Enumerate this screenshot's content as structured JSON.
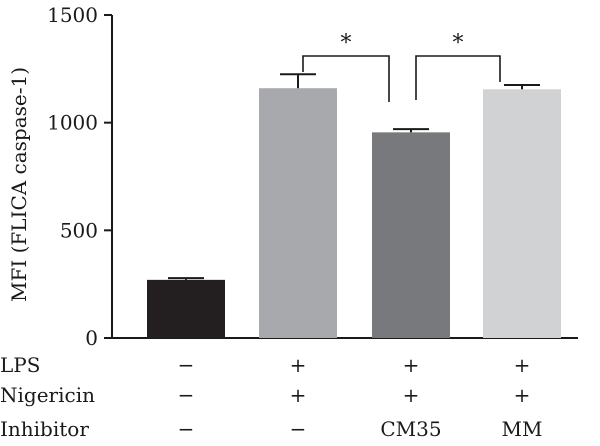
{
  "chart_data": {
    "type": "bar",
    "ylabel": "MFI (FLICA caspase-1)",
    "ylim": [
      0,
      1500
    ],
    "yticks": [
      0,
      500,
      1000,
      1500
    ],
    "bars": [
      {
        "value": 270,
        "error": 8,
        "color": "#231f20"
      },
      {
        "value": 1160,
        "error": 65,
        "color": "#a8a9ad"
      },
      {
        "value": 955,
        "error": 15,
        "color": "#78797c"
      },
      {
        "value": 1155,
        "error": 20,
        "color": "#d1d2d4"
      }
    ],
    "conditions": [
      {
        "label": "LPS",
        "values": [
          "−",
          "+",
          "+",
          "+"
        ]
      },
      {
        "label": "Nigericin",
        "values": [
          "−",
          "+",
          "+",
          "+"
        ]
      },
      {
        "label": "Inhibitor",
        "values": [
          "−",
          "−",
          "CM35",
          "MM"
        ]
      }
    ],
    "significance": [
      {
        "from": 1,
        "to": 2,
        "label": "*"
      },
      {
        "from": 2,
        "to": 3,
        "label": "*"
      }
    ]
  }
}
